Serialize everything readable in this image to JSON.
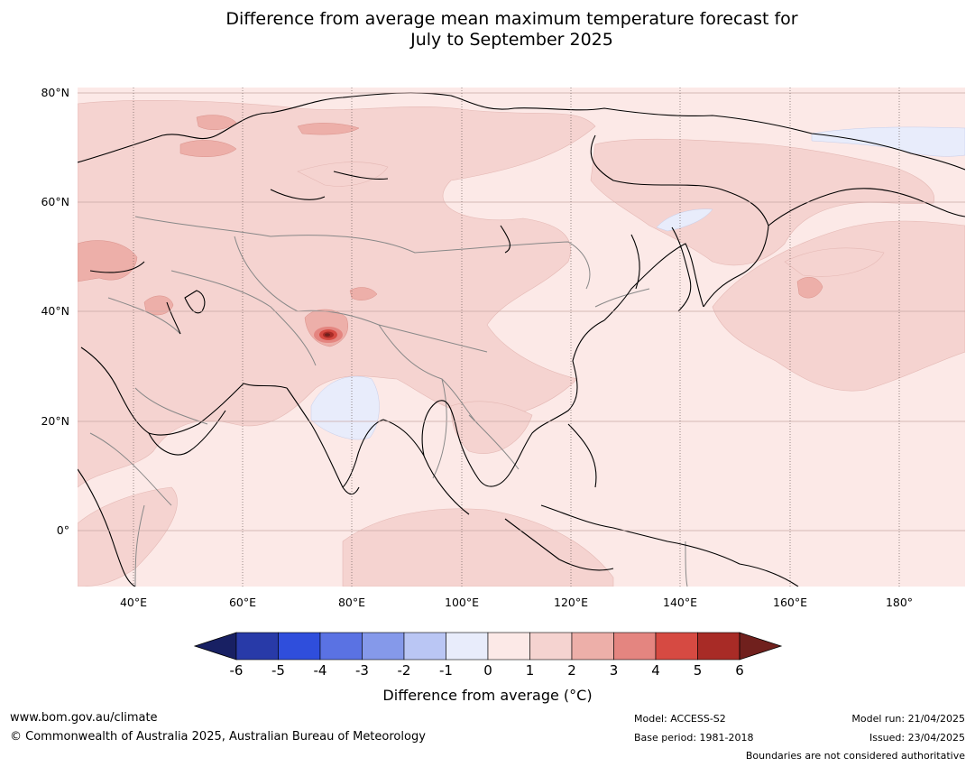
{
  "title": {
    "line1": "Difference from average mean maximum temperature forecast for",
    "line2": "July to September 2025"
  },
  "map": {
    "region": "Asia",
    "lat_labels": [
      "80°N",
      "60°N",
      "40°N",
      "20°N",
      "0°"
    ],
    "lon_labels": [
      "40°E",
      "60°E",
      "80°E",
      "100°E",
      "120°E",
      "140°E",
      "160°E",
      "180°"
    ],
    "graticule": "dotted meridians, solid parallels",
    "country_boundaries": "grey",
    "coastlines": "black"
  },
  "colorbar": {
    "ticks": [
      "-6",
      "-5",
      "-4",
      "-3",
      "-2",
      "-1",
      "0",
      "1",
      "2",
      "3",
      "4",
      "5",
      "6"
    ],
    "colors": [
      "#182063",
      "#283aa8",
      "#2f4edc",
      "#5a72e3",
      "#8599ea",
      "#bac6f4",
      "#e8ecfb",
      "#fce9e7",
      "#f5d3d0",
      "#edafa9",
      "#e48580",
      "#d64a42",
      "#a82b26",
      "#70201d"
    ],
    "label": "Difference from average ( $^\\circ$C)",
    "label_display": "Difference from average (°C)"
  },
  "footer": {
    "website": "www.bom.gov.au/climate",
    "copyright": "© Commonwealth of Australia 2025, Australian Bureau of Meteorology",
    "model": "Model: ACCESS-S2",
    "base_period": "Base period: 1981-2018",
    "model_run": "Model run: 21/04/2025",
    "issued": "Issued: 23/04/2025",
    "disclaimer": "Boundaries are not considered authoritative"
  }
}
